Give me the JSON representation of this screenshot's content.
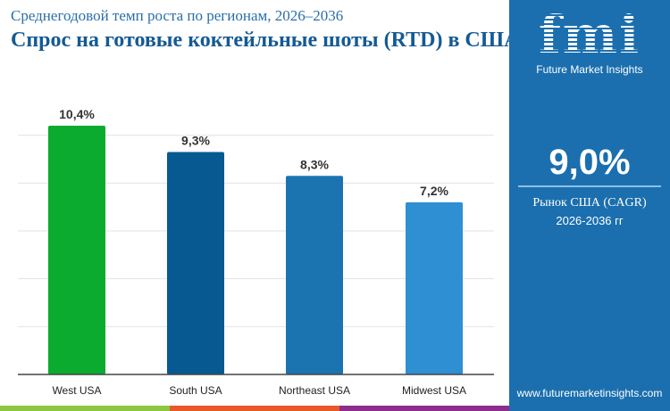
{
  "header": {
    "subtitle": "Среднегодовой темп роста по регионам, 2026–2036",
    "title": "Спрос на готовые коктейльные шоты (RTD) в США"
  },
  "panel": {
    "logo_text": "fmi",
    "logo_caption": "Future Market Insights",
    "cagr_value": "9,0%",
    "cagr_label": "Рынок США (CAGR)",
    "cagr_period": "2026-2036 гг",
    "url": "www.futuremarketinsights.com",
    "background": "#1b6fae"
  },
  "colors": {
    "stripe": [
      "#8dc63f",
      "#e8582a",
      "#8b2e8c"
    ]
  },
  "chart_data": {
    "type": "bar",
    "categories": [
      "West USA",
      "South USA",
      "Northeast USA",
      "Midwest USA"
    ],
    "values": [
      10.4,
      9.3,
      8.3,
      7.2
    ],
    "data_labels": [
      "10,4%",
      "9,3%",
      "8,3%",
      "7,2%"
    ],
    "colors": [
      "#0aab2e",
      "#065a91",
      "#1b74b0",
      "#2f8fd3"
    ],
    "title": "Спрос на готовые коктейльные шоты (RTD) в США",
    "xlabel": "",
    "ylabel": "",
    "ylim": [
      0,
      10
    ],
    "grid": true,
    "gridlines": [
      2,
      4,
      6,
      8,
      10
    ],
    "legend": "none"
  }
}
